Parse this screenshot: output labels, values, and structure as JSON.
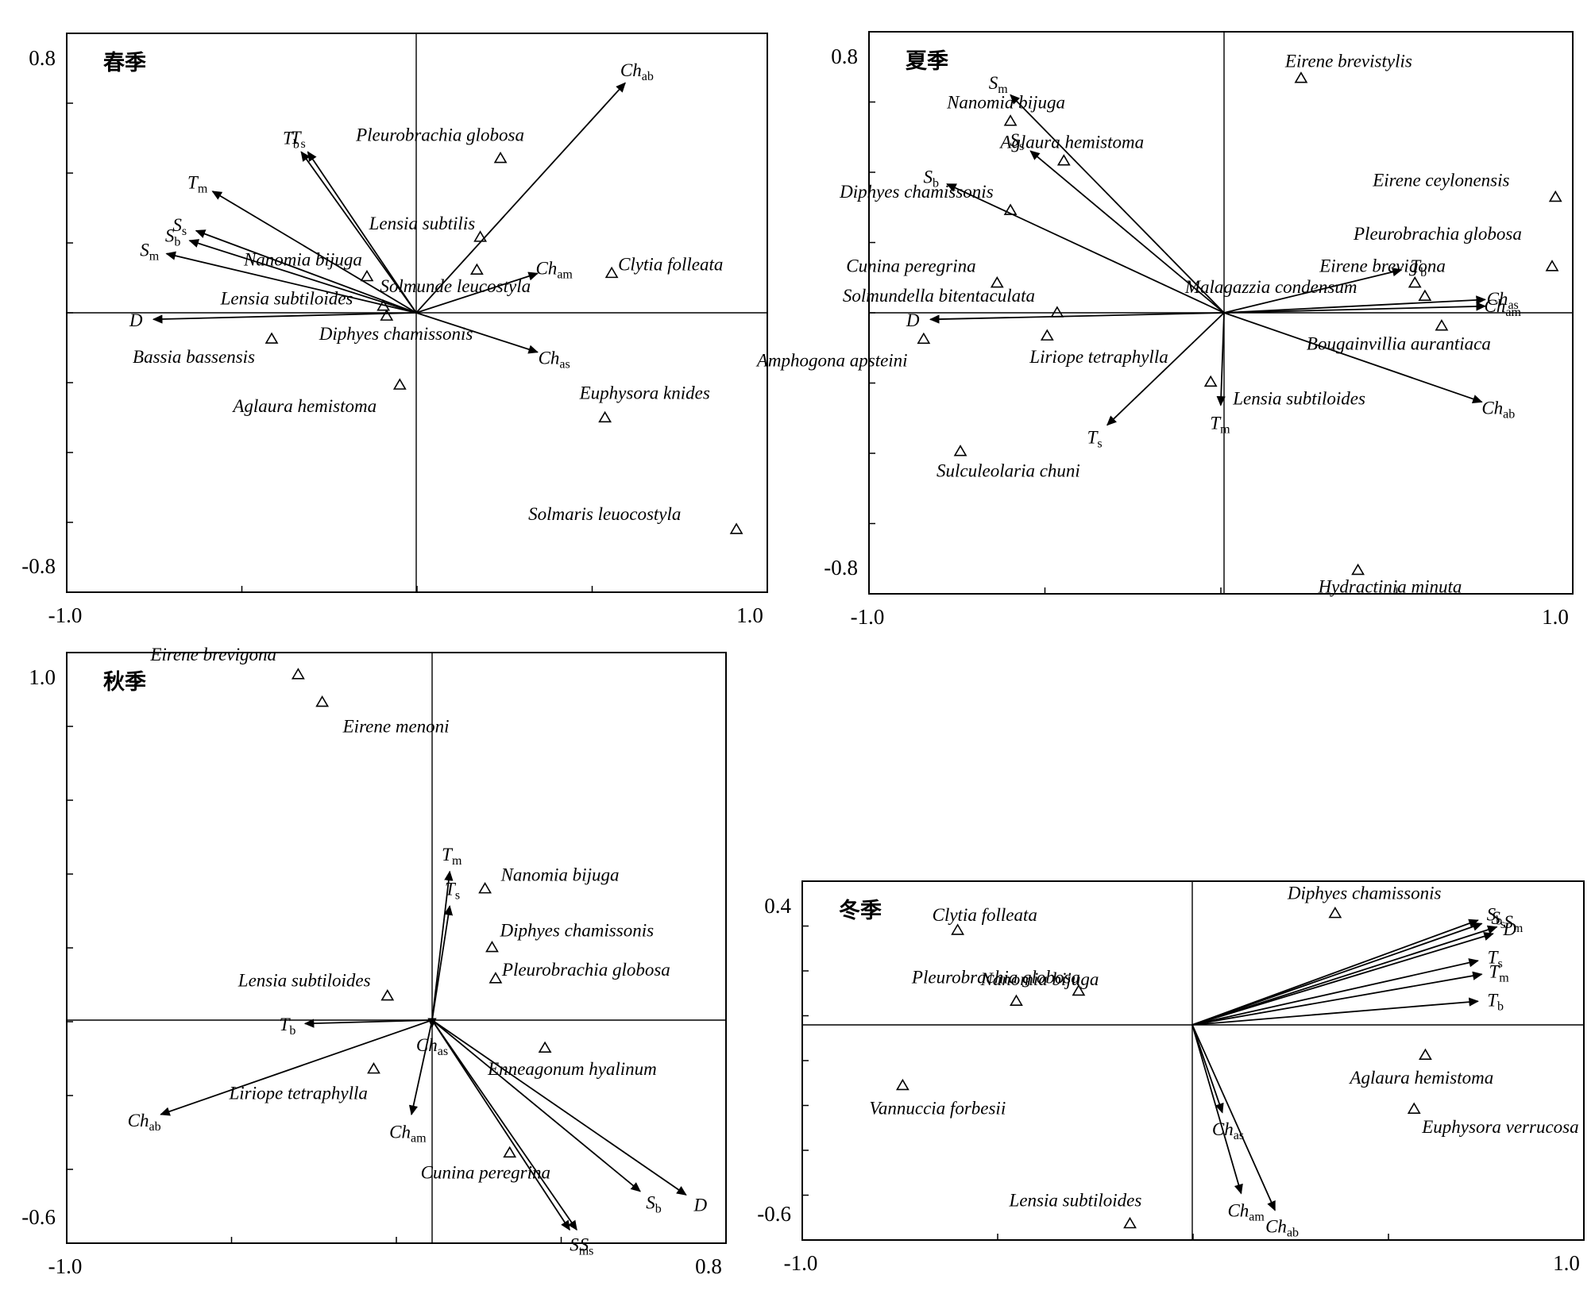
{
  "colors": {
    "ink": "#000000",
    "background": "#ffffff"
  },
  "chart_data": [
    {
      "type": "scatter",
      "title": "春季",
      "xlim": [
        -1.0,
        1.0
      ],
      "ylim": [
        -0.8,
        0.8
      ],
      "x_ticks": [
        "-1.0",
        "1.0"
      ],
      "y_ticks": [
        "0.8",
        "-0.8"
      ],
      "species": [
        {
          "name": "Pleurobrachia globosa",
          "x": 0.25,
          "y": 0.47
        },
        {
          "name": "Lensia subtilis",
          "x": 0.19,
          "y": 0.23
        },
        {
          "name": "Solmunde leucostyla",
          "x": 0.18,
          "y": 0.13
        },
        {
          "name": "Clytia folleata",
          "x": 0.58,
          "y": 0.12
        },
        {
          "name": "Nanomia  bijuga",
          "x": -0.15,
          "y": 0.11
        },
        {
          "name": "Lensia subtiloides",
          "x": -0.1,
          "y": 0.02
        },
        {
          "name": "Diphyes chamissonis",
          "x": -0.09,
          "y": -0.01
        },
        {
          "name": "Bassia bassensis",
          "x": -0.44,
          "y": -0.08
        },
        {
          "name": "Aglaura  hemistoma",
          "x": -0.05,
          "y": -0.22
        },
        {
          "name": "Euphysora knides",
          "x": 0.56,
          "y": -0.32
        },
        {
          "name": "Solmaris leuocostyla",
          "x": 0.95,
          "y": -0.66
        }
      ],
      "variables": [
        {
          "symbol": "Ch",
          "sub": "ab",
          "x": 0.62,
          "y": 0.7
        },
        {
          "symbol": "T",
          "sub": "b",
          "x": -0.35,
          "y": 0.49
        },
        {
          "symbol": "T",
          "sub": "s",
          "x": -0.33,
          "y": 0.49
        },
        {
          "symbol": "T",
          "sub": "m",
          "x": -0.62,
          "y": 0.37
        },
        {
          "symbol": "S",
          "sub": "s",
          "x": -0.67,
          "y": 0.25
        },
        {
          "symbol": "S",
          "sub": "b",
          "x": -0.69,
          "y": 0.22
        },
        {
          "symbol": "S",
          "sub": "m",
          "x": -0.76,
          "y": 0.18
        },
        {
          "symbol": "D",
          "sub": "",
          "x": -0.8,
          "y": -0.02
        },
        {
          "symbol": "Ch",
          "sub": "am",
          "x": 0.36,
          "y": 0.12
        },
        {
          "symbol": "Ch",
          "sub": "as",
          "x": 0.36,
          "y": -0.12
        }
      ]
    },
    {
      "type": "scatter",
      "title": "夏季",
      "xlim": [
        -1.0,
        1.0
      ],
      "ylim": [
        -0.8,
        0.8
      ],
      "x_ticks": [
        "-1.0",
        "1.0"
      ],
      "y_ticks": [
        "0.8",
        "-0.8"
      ],
      "species": [
        {
          "name": "Eirene brevistylis",
          "x": 0.23,
          "y": 0.71
        },
        {
          "name": "Nanomia bijuga",
          "x": -0.64,
          "y": 0.58
        },
        {
          "name": "Aglaura hemistoma",
          "x": -0.48,
          "y": 0.46
        },
        {
          "name": "Eirene ceylonensis",
          "x": 0.99,
          "y": 0.35
        },
        {
          "name": "Diphyes chamissonis",
          "x": -0.64,
          "y": 0.31
        },
        {
          "name": "Pleurobrachia globosa",
          "x": 0.98,
          "y": 0.14
        },
        {
          "name": "Cunina peregrina",
          "x": -0.68,
          "y": 0.09
        },
        {
          "name": "Eirene brevigona",
          "x": 0.57,
          "y": 0.09
        },
        {
          "name": "Solmundella bitentaculata",
          "x": -0.5,
          "y": 0.0
        },
        {
          "name": "Malagazzia condensum",
          "x": 0.6,
          "y": 0.05
        },
        {
          "name": "Bougainvillia aurantiaca",
          "x": 0.65,
          "y": -0.04
        },
        {
          "name": "Amphogona apsteini",
          "x": -0.9,
          "y": -0.08
        },
        {
          "name": "Liriope tetraphylla",
          "x": -0.53,
          "y": -0.07
        },
        {
          "name": "Lensia subtiloides",
          "x": -0.04,
          "y": -0.21
        },
        {
          "name": "Sulculeolaria chuni",
          "x": -0.79,
          "y": -0.42
        },
        {
          "name": "Hydractinia minuta",
          "x": 0.4,
          "y": -0.78
        }
      ],
      "variables": [
        {
          "symbol": "S",
          "sub": "m",
          "x": -0.64,
          "y": 0.66
        },
        {
          "symbol": "S",
          "sub": "s",
          "x": -0.58,
          "y": 0.49
        },
        {
          "symbol": "S",
          "sub": "b",
          "x": -0.83,
          "y": 0.39
        },
        {
          "symbol": "D",
          "sub": "",
          "x": -0.88,
          "y": -0.02
        },
        {
          "symbol": "T",
          "sub": "b",
          "x": 0.53,
          "y": 0.13
        },
        {
          "symbol": "Ch",
          "sub": "as",
          "x": 0.78,
          "y": 0.04
        },
        {
          "symbol": "Ch",
          "sub": "am",
          "x": 0.78,
          "y": 0.02
        },
        {
          "symbol": "Ch",
          "sub": "ab",
          "x": 0.77,
          "y": -0.27
        },
        {
          "symbol": "T",
          "sub": "m",
          "x": -0.01,
          "y": -0.28
        },
        {
          "symbol": "T",
          "sub": "s",
          "x": -0.35,
          "y": -0.34
        }
      ]
    },
    {
      "type": "scatter",
      "title": "秋季",
      "xlim": [
        -1.0,
        0.8
      ],
      "ylim": [
        -0.6,
        1.0
      ],
      "x_ticks": [
        "-1.0",
        "0.8"
      ],
      "y_ticks": [
        "1.0",
        "-0.6"
      ],
      "species": [
        {
          "name": "Eirene brevigona",
          "x": -0.39,
          "y": 1.0
        },
        {
          "name": "Eirene menoni",
          "x": -0.32,
          "y": 0.92
        },
        {
          "name": "Nanomia bijuga",
          "x": 0.15,
          "y": 0.38
        },
        {
          "name": "Diphyes chamissonis",
          "x": 0.17,
          "y": 0.21
        },
        {
          "name": "Pleurobrachia globosa",
          "x": 0.18,
          "y": 0.12
        },
        {
          "name": "Lensia subtiloides",
          "x": -0.13,
          "y": 0.07
        },
        {
          "name": "Enneagonum hyalinum",
          "x": 0.32,
          "y": -0.08
        },
        {
          "name": "Liriope tetraphylla",
          "x": -0.17,
          "y": -0.14
        },
        {
          "name": "Cunina peregrina",
          "x": 0.22,
          "y": -0.38
        }
      ],
      "variables": [
        {
          "symbol": "T",
          "sub": "m",
          "x": 0.05,
          "y": 0.43
        },
        {
          "symbol": "T",
          "sub": "s",
          "x": 0.05,
          "y": 0.33
        },
        {
          "symbol": "T",
          "sub": "b",
          "x": -0.37,
          "y": -0.01
        },
        {
          "symbol": "Ch",
          "sub": "as",
          "x": 0.0,
          "y": -0.02
        },
        {
          "symbol": "Ch",
          "sub": "am",
          "x": -0.06,
          "y": -0.27
        },
        {
          "symbol": "Ch",
          "sub": "ab",
          "x": -0.79,
          "y": -0.27
        },
        {
          "symbol": "S",
          "sub": "b",
          "x": 0.59,
          "y": -0.49
        },
        {
          "symbol": "D",
          "sub": "",
          "x": 0.72,
          "y": -0.5
        },
        {
          "symbol": "S",
          "sub": "s",
          "x": 0.41,
          "y": -0.6
        },
        {
          "symbol": "S",
          "sub": "m",
          "x": 0.39,
          "y": -0.6
        }
      ]
    },
    {
      "type": "scatter",
      "title": "冬季",
      "xlim": [
        -1.0,
        1.0
      ],
      "ylim": [
        -0.6,
        0.4
      ],
      "x_ticks": [
        "-1.0",
        "1.0"
      ],
      "y_ticks": [
        "0.4",
        "-0.6"
      ],
      "species": [
        {
          "name": "Diphyes chamissonis",
          "x": 0.38,
          "y": 0.33
        },
        {
          "name": "Clytia folleata",
          "x": -0.64,
          "y": 0.28
        },
        {
          "name": "Nanomia bijuga",
          "x": -0.48,
          "y": 0.07
        },
        {
          "name": "Pleurobrachia globosa",
          "x": -0.31,
          "y": 0.1
        },
        {
          "name": "Aglaura hemistoma",
          "x": 0.62,
          "y": -0.09
        },
        {
          "name": "Vannuccia forbesii",
          "x": -0.79,
          "y": -0.18
        },
        {
          "name": "Euphysora verrucosa",
          "x": 0.59,
          "y": -0.25
        },
        {
          "name": "Lensia subtiloides",
          "x": -0.17,
          "y": -0.59
        }
      ],
      "variables": [
        {
          "symbol": "S",
          "sub": "b",
          "x": 0.76,
          "y": 0.31
        },
        {
          "symbol": "S",
          "sub": "s",
          "x": 0.77,
          "y": 0.3
        },
        {
          "symbol": "S",
          "sub": "m",
          "x": 0.81,
          "y": 0.29
        },
        {
          "symbol": "D",
          "sub": "",
          "x": 0.8,
          "y": 0.27
        },
        {
          "symbol": "T",
          "sub": "s",
          "x": 0.76,
          "y": 0.19
        },
        {
          "symbol": "T",
          "sub": "m",
          "x": 0.77,
          "y": 0.15
        },
        {
          "symbol": "T",
          "sub": "b",
          "x": 0.76,
          "y": 0.07
        },
        {
          "symbol": "Ch",
          "sub": "as",
          "x": 0.08,
          "y": -0.26
        },
        {
          "symbol": "Ch",
          "sub": "am",
          "x": 0.13,
          "y": -0.5
        },
        {
          "symbol": "Ch",
          "sub": "ab",
          "x": 0.22,
          "y": -0.55
        }
      ]
    }
  ]
}
